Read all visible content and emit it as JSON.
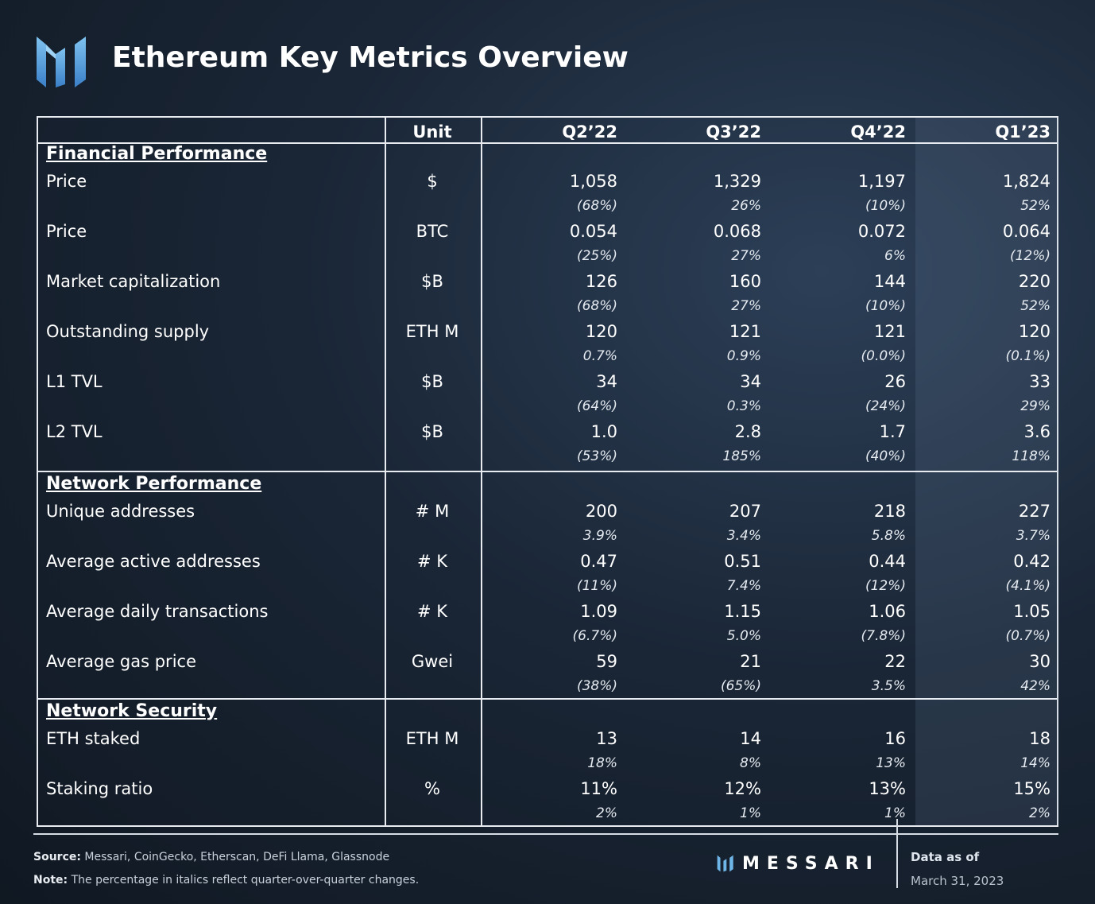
{
  "header": {
    "title": "Ethereum Key Metrics Overview",
    "logo_icon": "messari-m-logo-icon"
  },
  "table": {
    "columns": [
      "Unit",
      "Q2’22",
      "Q3’22",
      "Q4’22",
      "Q1’23"
    ],
    "sections": [
      {
        "title": "Financial Performance",
        "rows": [
          {
            "label": "Price",
            "unit": "$",
            "values": [
              "1,058",
              "1,329",
              "1,197",
              "1,824"
            ],
            "changes": [
              "(68%)",
              "26%",
              "(10%)",
              "52%"
            ]
          },
          {
            "label": "Price",
            "unit": "BTC",
            "values": [
              "0.054",
              "0.068",
              "0.072",
              "0.064"
            ],
            "changes": [
              "(25%)",
              "27%",
              "6%",
              "(12%)"
            ]
          },
          {
            "label": "Market capitalization",
            "unit": "$B",
            "values": [
              "126",
              "160",
              "144",
              "220"
            ],
            "changes": [
              "(68%)",
              "27%",
              "(10%)",
              "52%"
            ]
          },
          {
            "label": "Outstanding supply",
            "unit": "ETH M",
            "values": [
              "120",
              "121",
              "121",
              "120"
            ],
            "changes": [
              "0.7%",
              "0.9%",
              "(0.0%)",
              "(0.1%)"
            ]
          },
          {
            "label": "L1 TVL",
            "unit": "$B",
            "values": [
              "34",
              "34",
              "26",
              "33"
            ],
            "changes": [
              "(64%)",
              "0.3%",
              "(24%)",
              "29%"
            ]
          },
          {
            "label": "L2 TVL",
            "unit": "$B",
            "values": [
              "1.0",
              "2.8",
              "1.7",
              "3.6"
            ],
            "changes": [
              "(53%)",
              "185%",
              "(40%)",
              "118%"
            ]
          }
        ]
      },
      {
        "title": "Network Performance",
        "rows": [
          {
            "label": "Unique addresses",
            "unit": "# M",
            "values": [
              "200",
              "207",
              "218",
              "227"
            ],
            "changes": [
              "3.9%",
              "3.4%",
              "5.8%",
              "3.7%"
            ]
          },
          {
            "label": "Average active addresses",
            "unit": "# K",
            "values": [
              "0.47",
              "0.51",
              "0.44",
              "0.42"
            ],
            "changes": [
              "(11%)",
              "7.4%",
              "(12%)",
              "(4.1%)"
            ]
          },
          {
            "label": "Average daily transactions",
            "unit": "# K",
            "values": [
              "1.09",
              "1.15",
              "1.06",
              "1.05"
            ],
            "changes": [
              "(6.7%)",
              "5.0%",
              "(7.8%)",
              "(0.7%)"
            ]
          },
          {
            "label": "Average gas price",
            "unit": "Gwei",
            "values": [
              "59",
              "21",
              "22",
              "30"
            ],
            "changes": [
              "(38%)",
              "(65%)",
              "3.5%",
              "42%"
            ]
          }
        ]
      },
      {
        "title": "Network Security",
        "rows": [
          {
            "label": "ETH staked",
            "unit": "ETH M",
            "values": [
              "13",
              "14",
              "16",
              "18"
            ],
            "changes": [
              "18%",
              "8%",
              "13%",
              "14%"
            ]
          },
          {
            "label": "Staking ratio",
            "unit": "%",
            "values": [
              "11%",
              "12%",
              "13%",
              "15%"
            ],
            "changes": [
              "2%",
              "1%",
              "1%",
              "2%"
            ]
          }
        ]
      }
    ]
  },
  "footer": {
    "source_label": "Source:",
    "source_text": "Messari, CoinGecko, Etherscan, DeFi Llama, Glassnode",
    "note_label": "Note:",
    "note_text": "The percentage in italics reflect quarter-over-quarter changes.",
    "brand": "MESSARI",
    "data_as_of_label": "Data as of",
    "data_as_of_date": "March 31, 2023"
  }
}
